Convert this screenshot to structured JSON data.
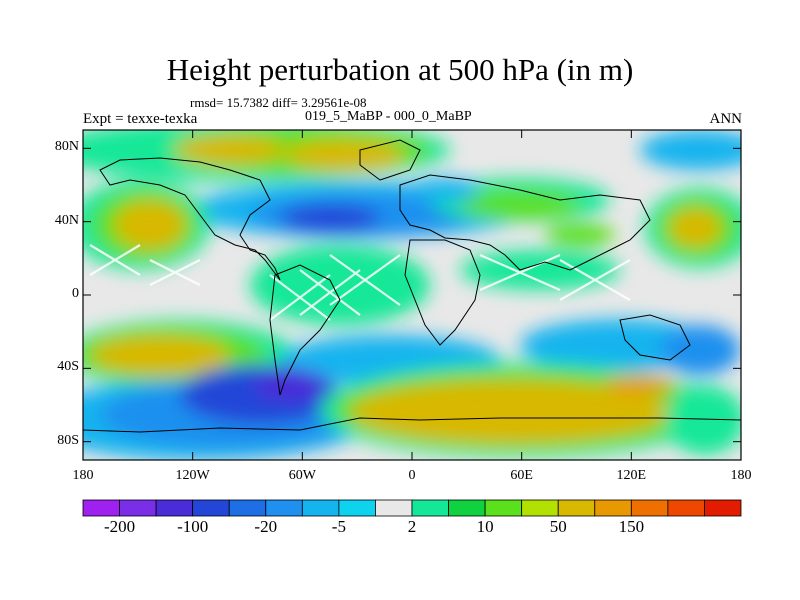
{
  "title": "Height perturbation at 500 hPa (in m)",
  "stats": "rmsd= 15.7382 diff= 3.29561e-08",
  "left_label": "Expt = texxe-texka",
  "center_label": "019_5_MaBP - 000_0_MaBP",
  "right_label": "ANN",
  "y_ticks": [
    {
      "label": "80N",
      "lat": 80
    },
    {
      "label": "40N",
      "lat": 40
    },
    {
      "label": "0",
      "lat": 0
    },
    {
      "label": "40S",
      "lat": -40
    },
    {
      "label": "80S",
      "lat": -80
    }
  ],
  "x_ticks": [
    {
      "label": "180",
      "lon": -180
    },
    {
      "label": "120W",
      "lon": -120
    },
    {
      "label": "60W",
      "lon": -60
    },
    {
      "label": "0",
      "lon": 0
    },
    {
      "label": "60E",
      "lon": 60
    },
    {
      "label": "120E",
      "lon": 120
    },
    {
      "label": "180",
      "lon": 180
    }
  ],
  "colorbar": {
    "colors": [
      "#a020f0",
      "#7a2ee8",
      "#4a2cd8",
      "#2446d8",
      "#1e6ee6",
      "#1f90ef",
      "#14b4ef",
      "#0fd2ee",
      "#e8e8e8",
      "#14e898",
      "#10d240",
      "#5ae01c",
      "#b2e000",
      "#d8b800",
      "#e89800",
      "#ee7000",
      "#ee4800",
      "#e21c00"
    ],
    "labels": [
      {
        "text": "-200",
        "boundary": 1
      },
      {
        "text": "-100",
        "boundary": 3
      },
      {
        "text": "-20",
        "boundary": 5
      },
      {
        "text": "-5",
        "boundary": 7
      },
      {
        "text": "2",
        "boundary": 9
      },
      {
        "text": "10",
        "boundary": 11
      },
      {
        "text": "50",
        "boundary": 13
      },
      {
        "text": "150",
        "boundary": 15
      }
    ]
  }
}
